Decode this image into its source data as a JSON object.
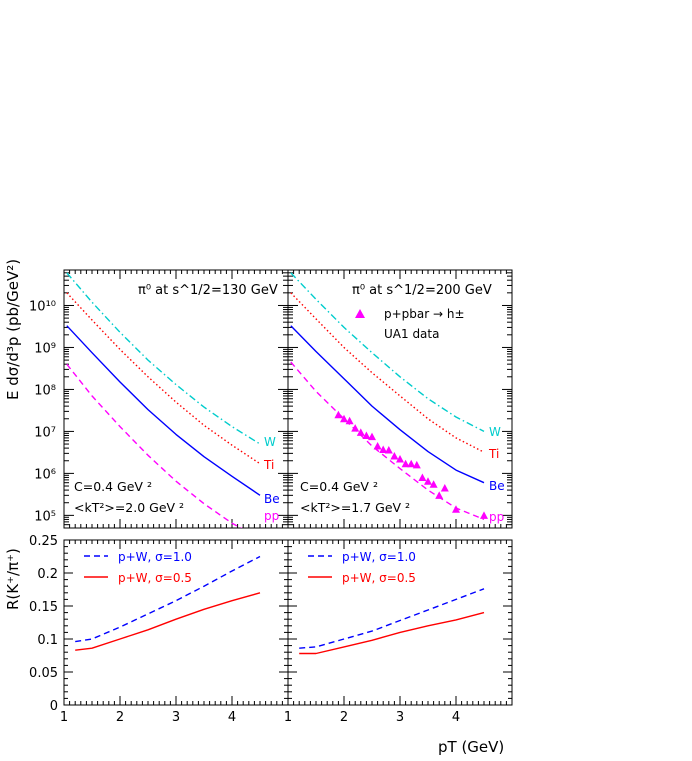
{
  "figure": {
    "ylabel_top": "E dσ/d³p (pb/GeV²)",
    "ylabel_bottom": "R(K⁺/π⁺)",
    "xlabel": "pT (GeV)"
  },
  "colors": {
    "W": "#00cccc",
    "Ti": "#ff0000",
    "Be": "#0000ff",
    "pp": "#ff00ff",
    "sigma10": "#0000ff",
    "sigma05": "#ff0000",
    "ua1": "#ff00ff"
  },
  "chart_data": [
    {
      "type": "line",
      "panel": "top-left",
      "title": "π⁰ at s^1/2=130 GeV",
      "annotation_C": "C=0.4 GeV ²",
      "annotation_kt": "<kT²>=2.0 GeV ²",
      "yscale": "log",
      "xlim": [
        1,
        5
      ],
      "ylim": [
        50000,
        70000000000
      ],
      "series": [
        {
          "name": "W",
          "style": "dash-dot",
          "x": [
            1.05,
            1.5,
            2.0,
            2.5,
            3.0,
            3.5,
            4.0,
            4.5
          ],
          "y": [
            60000000000,
            12000000000,
            2300000000,
            500000000,
            130000000,
            38000000,
            13000000,
            5000000
          ]
        },
        {
          "name": "Ti",
          "style": "dotted",
          "x": [
            1.05,
            1.5,
            2.0,
            2.5,
            3.0,
            3.5,
            4.0,
            4.5
          ],
          "y": [
            20000000000,
            4500000000,
            900000000,
            200000000,
            50000000,
            14000000,
            4700000,
            1700000
          ]
        },
        {
          "name": "Be",
          "style": "solid",
          "x": [
            1.05,
            1.5,
            2.0,
            2.5,
            3.0,
            3.5,
            4.0,
            4.5
          ],
          "y": [
            3300000000,
            750000000,
            150000000,
            33000000,
            8500000,
            2500000,
            850000,
            300000
          ]
        },
        {
          "name": "pp",
          "style": "dashed",
          "x": [
            1.05,
            1.5,
            2.0,
            2.5,
            3.0,
            3.5,
            4.0,
            4.3
          ],
          "y": [
            400000000,
            70000000,
            13000000,
            2700000,
            650000,
            190000,
            65000,
            40000
          ]
        }
      ],
      "x_ticks": [
        "1",
        "2",
        "3",
        "4"
      ],
      "y_ticks": [
        "10⁵",
        "10⁶",
        "10⁷",
        "10⁸",
        "10⁹",
        "10¹⁰"
      ]
    },
    {
      "type": "line",
      "panel": "top-right",
      "title": "π⁰ at s^1/2=200 GeV",
      "legend_line1": "p+pbar → h±",
      "legend_line2": "UA1 data",
      "annotation_C": "C=0.4 GeV ²",
      "annotation_kt": "<kT²>=1.7 GeV ²",
      "yscale": "log",
      "xlim": [
        1,
        5
      ],
      "ylim": [
        50000,
        70000000000
      ],
      "series": [
        {
          "name": "W",
          "style": "dash-dot",
          "x": [
            1.05,
            1.5,
            2.0,
            2.5,
            3.0,
            3.5,
            4.0,
            4.5
          ],
          "y": [
            60000000000,
            14000000000,
            3000000000,
            750000000,
            200000000,
            60000000,
            22000000,
            10000000
          ]
        },
        {
          "name": "Ti",
          "style": "dotted",
          "x": [
            1.05,
            1.5,
            2.0,
            2.5,
            3.0,
            3.5,
            4.0,
            4.5
          ],
          "y": [
            20000000000,
            4800000000,
            1000000000,
            250000000,
            70000000,
            20000000,
            7000000,
            3200000
          ]
        },
        {
          "name": "Be",
          "style": "solid",
          "x": [
            1.05,
            1.5,
            2.0,
            2.5,
            3.0,
            3.5,
            4.0,
            4.5
          ],
          "y": [
            3300000000,
            800000000,
            180000000,
            40000000,
            11000000,
            3300000,
            1200000,
            600000
          ]
        },
        {
          "name": "pp",
          "style": "dashed",
          "x": [
            1.05,
            1.5,
            2.0,
            2.5,
            3.0,
            3.5,
            4.0,
            4.5
          ],
          "y": [
            450000000,
            90000000,
            20000000,
            4500000,
            1300000,
            400000,
            150000,
            80000
          ]
        }
      ],
      "points": {
        "name": "UA1 data",
        "x": [
          1.9,
          2.0,
          2.1,
          2.2,
          2.3,
          2.4,
          2.5,
          2.6,
          2.7,
          2.8,
          2.9,
          3.0,
          3.1,
          3.2,
          3.3,
          3.4,
          3.5,
          3.6,
          3.7,
          3.8,
          4.0,
          4.5
        ],
        "y": [
          25000000,
          20000000,
          18000000,
          12000000,
          9500000,
          8000000,
          7500000,
          4500000,
          3700000,
          3600000,
          2600000,
          2200000,
          1700000,
          1700000,
          1600000,
          800000,
          650000,
          550000,
          300000,
          450000,
          140000,
          100000
        ]
      },
      "x_ticks": [
        "1",
        "2",
        "3",
        "4"
      ],
      "y_ticks": []
    },
    {
      "type": "line",
      "panel": "bottom-left",
      "xlim": [
        1,
        5
      ],
      "ylim": [
        0,
        0.25
      ],
      "series": [
        {
          "name": "p+W, σ=1.0",
          "style": "dashed",
          "x": [
            1.2,
            1.5,
            2.0,
            2.5,
            3.0,
            3.5,
            4.0,
            4.5
          ],
          "y": [
            0.096,
            0.1,
            0.118,
            0.138,
            0.158,
            0.18,
            0.203,
            0.225
          ]
        },
        {
          "name": "p+W, σ=0.5",
          "style": "solid",
          "x": [
            1.2,
            1.5,
            2.0,
            2.5,
            3.0,
            3.5,
            4.0,
            4.5
          ],
          "y": [
            0.083,
            0.086,
            0.1,
            0.114,
            0.13,
            0.145,
            0.158,
            0.17
          ]
        }
      ],
      "x_ticks": [
        "1",
        "2",
        "3",
        "4"
      ],
      "y_ticks": [
        "0",
        "0.05",
        "0.1",
        "0.15",
        "0.2",
        "0.25"
      ]
    },
    {
      "type": "line",
      "panel": "bottom-right",
      "xlim": [
        1,
        5
      ],
      "ylim": [
        0,
        0.25
      ],
      "series": [
        {
          "name": "p+W, σ=1.0",
          "style": "dashed",
          "x": [
            1.2,
            1.5,
            2.0,
            2.5,
            3.0,
            3.5,
            4.0,
            4.5
          ],
          "y": [
            0.086,
            0.088,
            0.1,
            0.112,
            0.128,
            0.144,
            0.16,
            0.176
          ]
        },
        {
          "name": "p+W, σ=0.5",
          "style": "solid",
          "x": [
            1.2,
            1.5,
            2.0,
            2.5,
            3.0,
            3.5,
            4.0,
            4.5
          ],
          "y": [
            0.078,
            0.078,
            0.088,
            0.098,
            0.11,
            0.12,
            0.129,
            0.14
          ]
        }
      ],
      "x_ticks": [
        "1",
        "2",
        "3",
        "4"
      ],
      "y_ticks": []
    }
  ]
}
